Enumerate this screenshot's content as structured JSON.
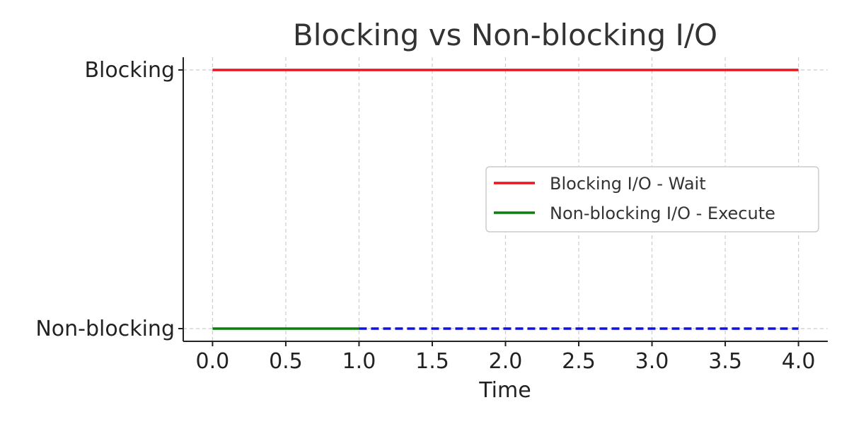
{
  "chart_data": {
    "type": "line",
    "title": "Blocking vs Non-blocking I/O",
    "xlabel": "Time",
    "ylabel": "",
    "xlim": [
      -0.2,
      4.2
    ],
    "x_ticks": [
      "0.0",
      "0.5",
      "1.0",
      "1.5",
      "2.0",
      "2.5",
      "3.0",
      "3.5",
      "4.0"
    ],
    "y_categories": [
      "Non-blocking",
      "Blocking"
    ],
    "grid": true,
    "legend_position": "center-right",
    "series": [
      {
        "name": "Blocking I/O - Wait",
        "color": "#e8151b",
        "style": "solid",
        "category": "Blocking",
        "x": [
          0,
          4
        ],
        "in_legend": true
      },
      {
        "name": "Non-blocking I/O - Execute",
        "color": "#0b7f0b",
        "style": "solid",
        "category": "Non-blocking",
        "x": [
          0,
          1
        ],
        "in_legend": true
      },
      {
        "color": "#1010e0",
        "style": "dashed",
        "category": "Non-blocking",
        "x": [
          1,
          4
        ],
        "in_legend": false
      }
    ]
  }
}
